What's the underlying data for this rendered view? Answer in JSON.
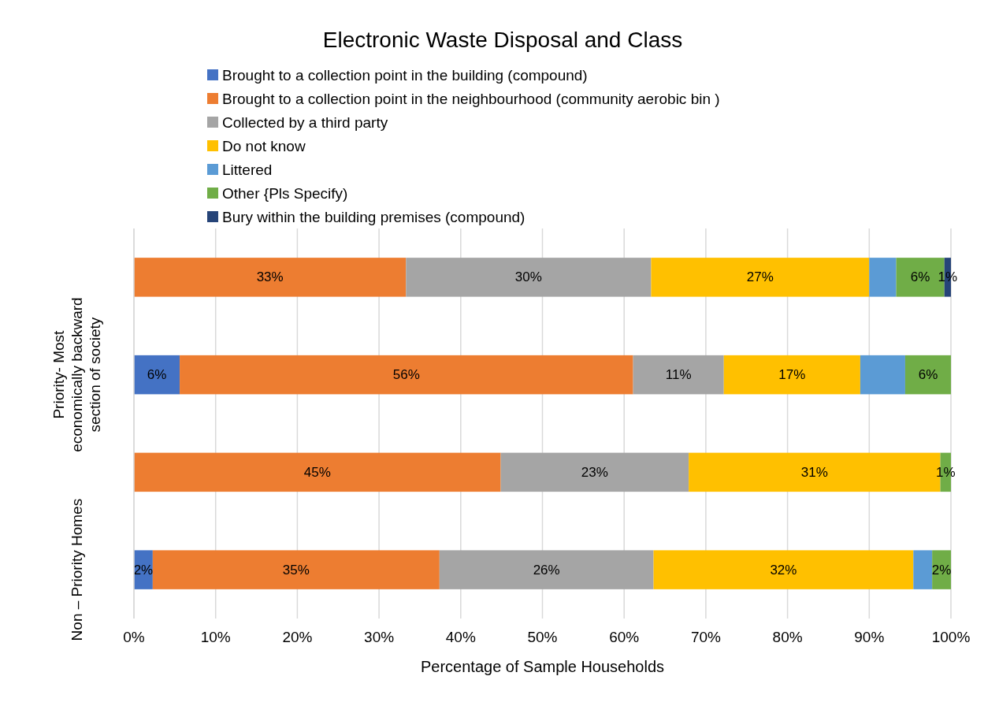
{
  "chart_data": {
    "type": "bar",
    "orientation": "horizontal",
    "stacked": true,
    "title": "Electronic Waste Disposal and Class",
    "xlabel": "Percentage of Sample Households",
    "categories": [
      null,
      "Priority- Most economically backward section of society",
      null,
      "Non – Priority Homes"
    ],
    "series": [
      {
        "name": "Brought to a collection point in the building (compound)",
        "color": "#4472c4",
        "values": [
          null,
          5.6,
          null,
          2.3
        ],
        "value_labels": [
          null,
          "6%",
          null,
          "2%"
        ]
      },
      {
        "name": "Brought to a collection point in the neighbourhood (community aerobic bin )",
        "color": "#ed7d31",
        "values": [
          33.3,
          55.5,
          44.9,
          35.1
        ],
        "value_labels": [
          "33%",
          "56%",
          "45%",
          "35%"
        ]
      },
      {
        "name": "Collected by a third party",
        "color": "#a5a5a5",
        "values": [
          30,
          11.1,
          23,
          26.2
        ],
        "value_labels": [
          "30%",
          "11%",
          "23%",
          "26%"
        ]
      },
      {
        "name": "Do not know",
        "color": "#ffc000",
        "values": [
          26.7,
          16.7,
          30.8,
          31.8
        ],
        "value_labels": [
          "27%",
          "17%",
          "31%",
          "32%"
        ]
      },
      {
        "name": "Littered",
        "color": "#5b9bd5",
        "values": [
          3.3,
          5.5,
          null,
          2.3
        ],
        "value_labels": [
          null,
          null,
          null,
          null
        ]
      },
      {
        "name": "Other {Pls Specify)",
        "color": "#70ad47",
        "values": [
          5.9,
          5.6,
          1.3,
          2.3
        ],
        "value_labels": [
          "6%",
          "6%",
          "1%",
          "2%"
        ]
      },
      {
        "name": "Bury within the building premises (compound)",
        "color": "#264478",
        "values": [
          0.8,
          null,
          null,
          null
        ],
        "value_labels": [
          "1%",
          null,
          null,
          null
        ]
      }
    ],
    "xlim": [
      0,
      100
    ],
    "xticks": [
      {
        "value": 0,
        "label": "0%"
      },
      {
        "value": 10,
        "label": "10%"
      },
      {
        "value": 20,
        "label": "20%"
      },
      {
        "value": 30,
        "label": "30%"
      },
      {
        "value": 40,
        "label": "40%"
      },
      {
        "value": 50,
        "label": "50%"
      },
      {
        "value": 60,
        "label": "60%"
      },
      {
        "value": 70,
        "label": "70%"
      },
      {
        "value": 80,
        "label": "80%"
      },
      {
        "value": 90,
        "label": "90%"
      },
      {
        "value": 100,
        "label": "100%"
      }
    ],
    "grid": "x",
    "legend": "top"
  }
}
